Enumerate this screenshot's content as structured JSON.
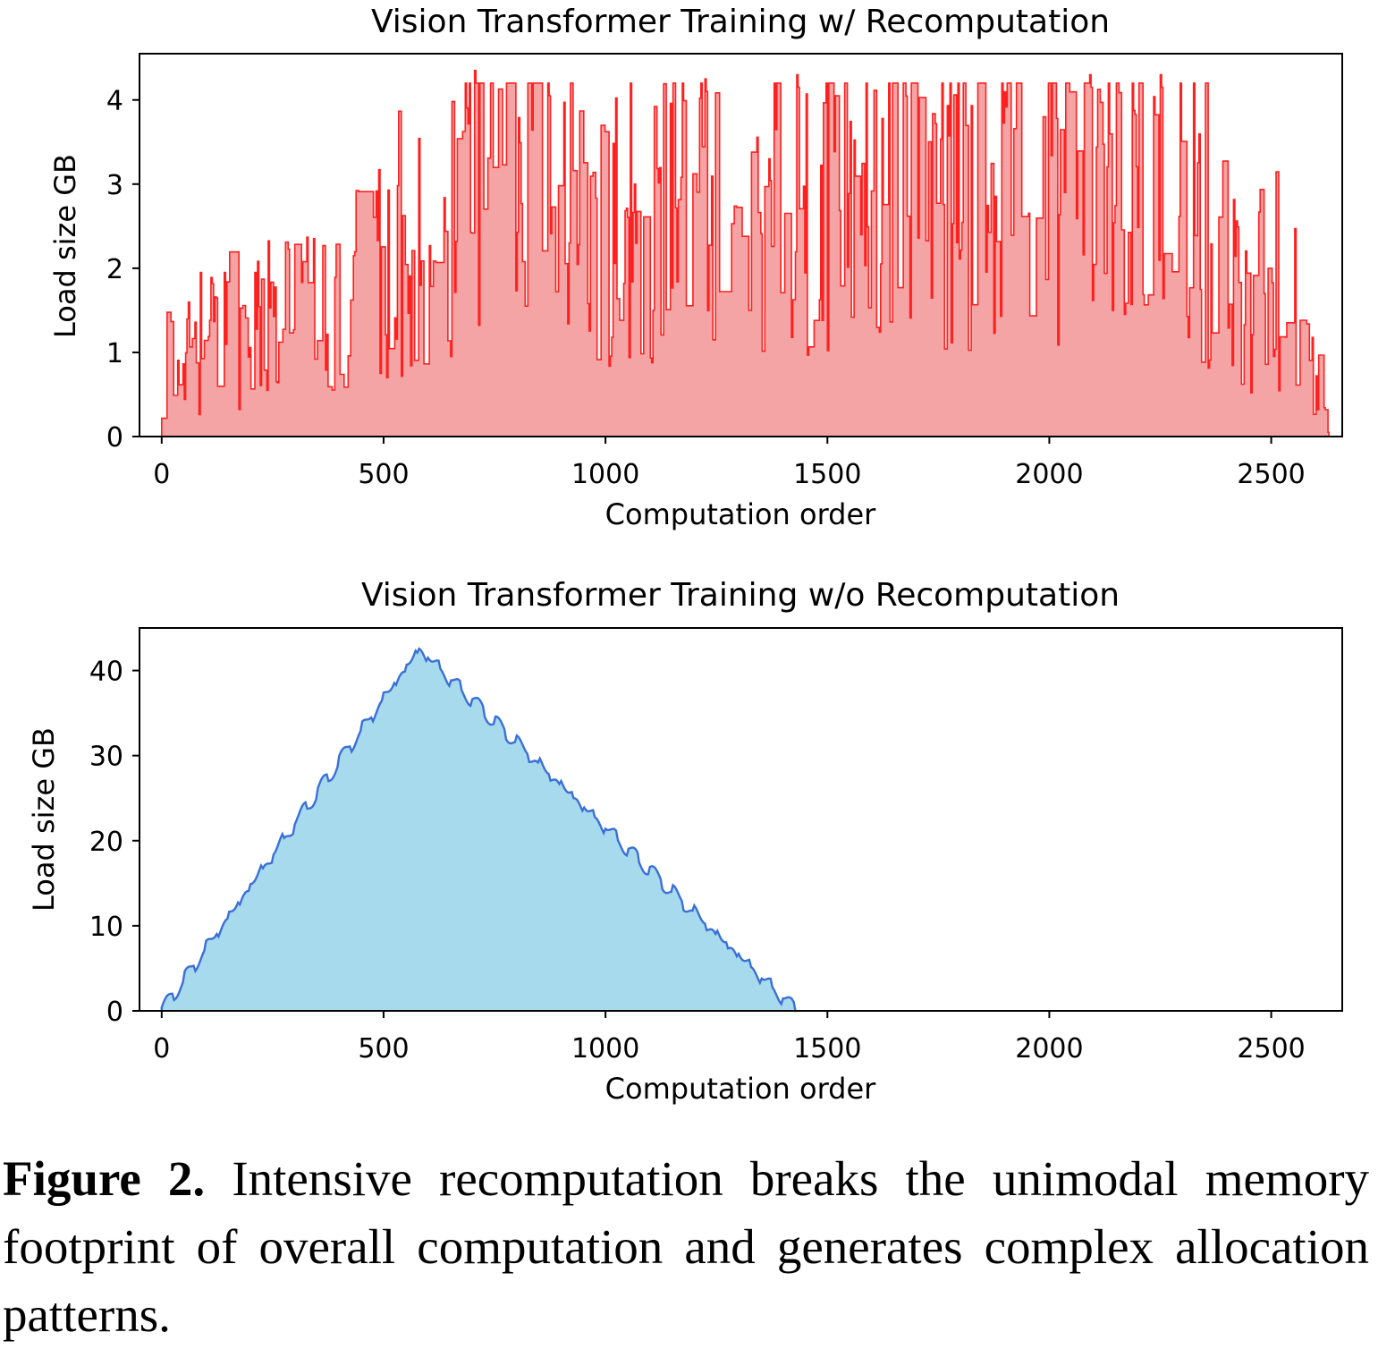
{
  "chart_data": [
    {
      "type": "area",
      "title": "Vision Transformer Training w/ Recomputation",
      "xlabel": "Computation order",
      "ylabel": "Load size GB",
      "xlim": [
        -50,
        2660
      ],
      "ylim": [
        0,
        4.55
      ],
      "xticks": [
        0,
        500,
        1000,
        1500,
        2000,
        2500
      ],
      "xtick_labels": [
        "0",
        "500",
        "1000",
        "1500",
        "2000",
        "2500"
      ],
      "yticks": [
        0,
        1,
        2,
        3,
        4
      ],
      "ytick_labels": [
        "0",
        "1",
        "2",
        "3",
        "4"
      ],
      "line_color": "#ff2020",
      "fill_color": "#f4a4a4",
      "envelope_x": [
        0,
        10,
        60,
        200,
        400,
        580,
        700,
        800,
        900,
        950,
        1100,
        1200,
        1300,
        1420,
        1500,
        1600,
        1700,
        1800,
        1900,
        2000,
        2100,
        2200,
        2300,
        2400,
        2430,
        2500,
        2550,
        2600,
        2630
      ],
      "envelope_y": [
        0.4,
        0.9,
        1.0,
        1.3,
        1.6,
        2.2,
        2.9,
        3.0,
        3.0,
        2.4,
        2.4,
        2.6,
        2.5,
        2.6,
        2.8,
        2.7,
        2.6,
        2.6,
        2.6,
        2.8,
        3.0,
        2.9,
        2.8,
        2.0,
        1.4,
        1.7,
        1.6,
        0.7,
        0.2
      ],
      "peak_x": [
        705,
        870,
        1225,
        1430,
        2090,
        2250
      ],
      "peak_y": [
        4.35,
        4.2,
        4.25,
        4.3,
        4.3,
        4.3
      ],
      "x_end": 2630
    },
    {
      "type": "area",
      "title": "Vision Transformer Training w/o Recomputation",
      "xlabel": "Computation order",
      "ylabel": "Load size GB",
      "xlim": [
        -50,
        2660
      ],
      "ylim": [
        0,
        45
      ],
      "xticks": [
        0,
        500,
        1000,
        1500,
        2000,
        2500
      ],
      "xtick_labels": [
        "0",
        "500",
        "1000",
        "1500",
        "2000",
        "2500"
      ],
      "yticks": [
        0,
        10,
        20,
        30,
        40
      ],
      "ytick_labels": [
        "0",
        "10",
        "20",
        "30",
        "40"
      ],
      "line_color": "#3b6fd8",
      "fill_color": "#a8daee",
      "x": [
        0,
        580,
        1430
      ],
      "y": [
        0,
        42.5,
        0
      ]
    }
  ],
  "caption": {
    "label": "Figure 2.",
    "text": " Intensive recomputation breaks the unimodal memory footprint of overall computation and generates com­plex allocation patterns."
  }
}
